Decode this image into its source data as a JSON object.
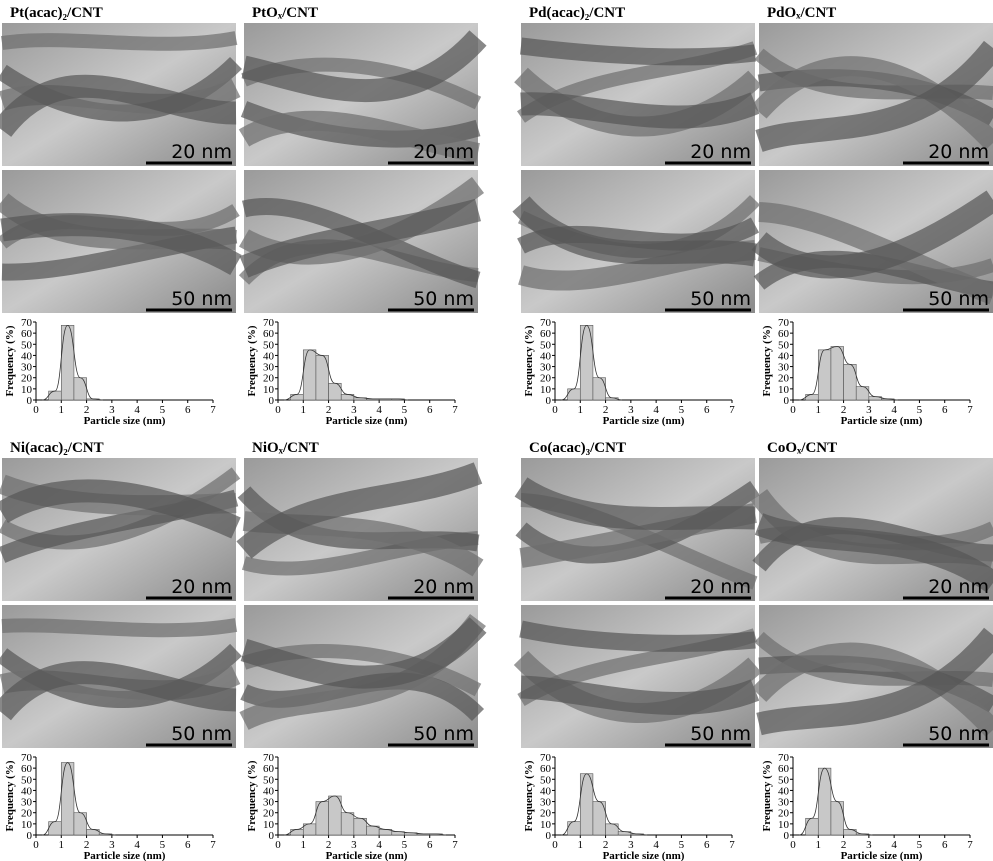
{
  "panels": [
    {
      "title": "Pt(acac)₂/CNT",
      "scale_bars": [
        "20 nm",
        "50 nm"
      ]
    },
    {
      "title": "PtOₓ/CNT",
      "scale_bars": [
        "20 nm",
        "50 nm"
      ]
    },
    {
      "title": "Pd(acac)₂/CNT",
      "scale_bars": [
        "20 nm",
        "50 nm"
      ]
    },
    {
      "title": "PdOₓ/CNT",
      "scale_bars": [
        "20 nm",
        "50 nm"
      ]
    },
    {
      "title": "Ni(acac)₂/CNT",
      "scale_bars": [
        "20 nm",
        "50 nm"
      ]
    },
    {
      "title": "NiOₓ/CNT",
      "scale_bars": [
        "20 nm",
        "50 nm"
      ]
    },
    {
      "title": "Co(acac)₃/CNT",
      "scale_bars": [
        "20 nm",
        "50 nm"
      ]
    },
    {
      "title": "CoOₓ/CNT",
      "scale_bars": [
        "20 nm",
        "50 nm"
      ]
    }
  ],
  "chart_data": [
    {
      "type": "histogram",
      "xlabel": "Particle size (nm)",
      "ylabel": "Frequency (%)",
      "bins": [
        0.5,
        1,
        1.5,
        2,
        2.5
      ],
      "values": [
        8,
        67,
        20,
        1
      ],
      "color": "#c8c8c8",
      "xlim": [
        0,
        7
      ],
      "ylim": [
        0,
        70
      ],
      "xticks": [
        0,
        1,
        2,
        3,
        4,
        5,
        6,
        7
      ],
      "yticks": [
        0,
        10,
        20,
        30,
        40,
        50,
        60,
        70
      ]
    },
    {
      "type": "histogram",
      "xlabel": "Particle size (nm)",
      "ylabel": "Frequency (%)",
      "bins": [
        0.5,
        1,
        1.5,
        2,
        2.5,
        3,
        3.5,
        4,
        4.5,
        5
      ],
      "values": [
        5,
        45,
        40,
        15,
        5,
        2,
        1,
        1,
        1
      ],
      "color": "#c8c8c8",
      "xlim": [
        0,
        7
      ],
      "ylim": [
        0,
        70
      ],
      "xticks": [
        0,
        1,
        2,
        3,
        4,
        5,
        6,
        7
      ],
      "yticks": [
        0,
        10,
        20,
        30,
        40,
        50,
        60,
        70
      ]
    },
    {
      "type": "histogram",
      "xlabel": "Particle size (nm)",
      "ylabel": "Frequency (%)",
      "bins": [
        0.5,
        1,
        1.5,
        2,
        2.5
      ],
      "values": [
        10,
        67,
        20,
        2
      ],
      "color": "#c8c8c8",
      "xlim": [
        0,
        7
      ],
      "ylim": [
        0,
        70
      ],
      "xticks": [
        0,
        1,
        2,
        3,
        4,
        5,
        6,
        7
      ],
      "yticks": [
        0,
        10,
        20,
        30,
        40,
        50,
        60,
        70
      ]
    },
    {
      "type": "histogram",
      "xlabel": "Particle size (nm)",
      "ylabel": "Frequency (%)",
      "bins": [
        0.5,
        1,
        1.5,
        2,
        2.5,
        3,
        3.5,
        4
      ],
      "values": [
        5,
        45,
        48,
        32,
        12,
        3,
        1
      ],
      "color": "#c8c8c8",
      "xlim": [
        0,
        7
      ],
      "ylim": [
        0,
        70
      ],
      "xticks": [
        0,
        1,
        2,
        3,
        4,
        5,
        6,
        7
      ],
      "yticks": [
        0,
        10,
        20,
        30,
        40,
        50,
        60,
        70
      ]
    },
    {
      "type": "histogram",
      "xlabel": "Particle size (nm)",
      "ylabel": "Frequency (%)",
      "bins": [
        0.5,
        1,
        1.5,
        2,
        2.5,
        3
      ],
      "values": [
        12,
        65,
        20,
        5,
        1
      ],
      "color": "#c8c8c8",
      "xlim": [
        0,
        7
      ],
      "ylim": [
        0,
        70
      ],
      "xticks": [
        0,
        1,
        2,
        3,
        4,
        5,
        6,
        7
      ],
      "yticks": [
        0,
        10,
        20,
        30,
        40,
        50,
        60,
        70
      ]
    },
    {
      "type": "histogram",
      "xlabel": "Particle size (nm)",
      "ylabel": "Frequency (%)",
      "bins": [
        0.5,
        1,
        1.5,
        2,
        2.5,
        3,
        3.5,
        4,
        4.5,
        5,
        5.5,
        6,
        6.5
      ],
      "values": [
        5,
        10,
        30,
        35,
        20,
        15,
        8,
        5,
        3,
        2,
        1,
        1
      ],
      "color": "#c8c8c8",
      "xlim": [
        0,
        7
      ],
      "ylim": [
        0,
        70
      ],
      "xticks": [
        0,
        1,
        2,
        3,
        4,
        5,
        6,
        7
      ],
      "yticks": [
        0,
        10,
        20,
        30,
        40,
        50,
        60,
        70
      ]
    },
    {
      "type": "histogram",
      "xlabel": "Particle size (nm)",
      "ylabel": "Frequency (%)",
      "bins": [
        0.5,
        1,
        1.5,
        2,
        2.5,
        3,
        3.5
      ],
      "values": [
        12,
        55,
        30,
        10,
        3,
        1
      ],
      "color": "#c8c8c8",
      "xlim": [
        0,
        7
      ],
      "ylim": [
        0,
        70
      ],
      "xticks": [
        0,
        1,
        2,
        3,
        4,
        5,
        6,
        7
      ],
      "yticks": [
        0,
        10,
        20,
        30,
        40,
        50,
        60,
        70
      ]
    },
    {
      "type": "histogram",
      "xlabel": "Particle size (nm)",
      "ylabel": "Frequency (%)",
      "bins": [
        0.5,
        1,
        1.5,
        2,
        2.5,
        3
      ],
      "values": [
        15,
        60,
        30,
        5,
        1
      ],
      "color": "#c8c8c8",
      "xlim": [
        0,
        7
      ],
      "ylim": [
        0,
        70
      ],
      "xticks": [
        0,
        1,
        2,
        3,
        4,
        5,
        6,
        7
      ],
      "yticks": [
        0,
        10,
        20,
        30,
        40,
        50,
        60,
        70
      ]
    }
  ]
}
